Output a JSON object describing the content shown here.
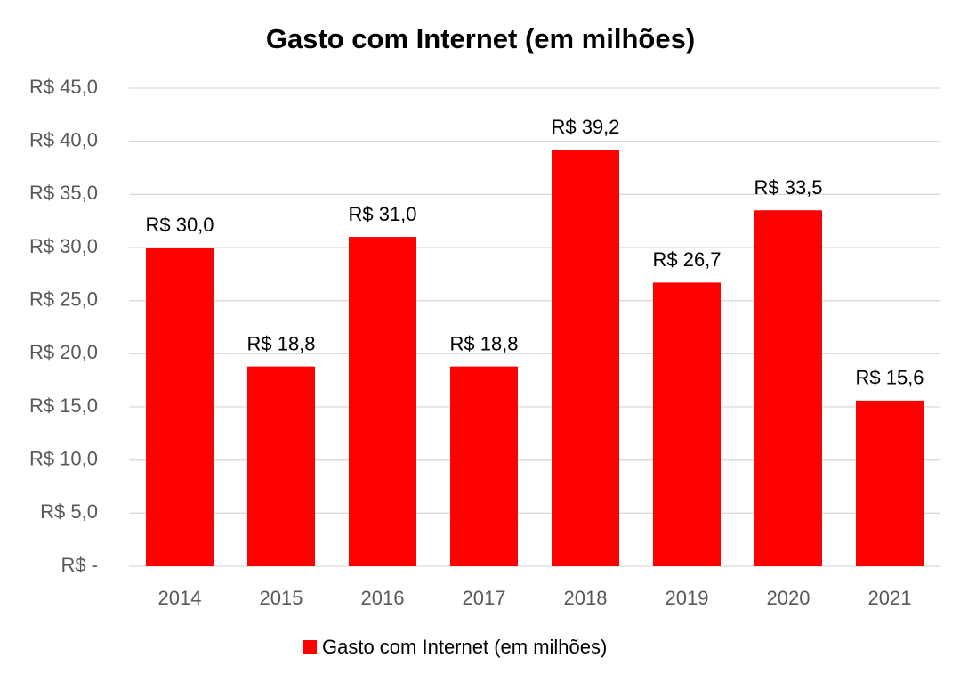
{
  "chart_data": {
    "type": "bar",
    "title": "Gasto com Internet (em milhões)",
    "categories": [
      "2014",
      "2015",
      "2016",
      "2017",
      "2018",
      "2019",
      "2020",
      "2021"
    ],
    "series": [
      {
        "name": "Gasto com Internet (em milhões)",
        "color": "#ff0000",
        "values": [
          30.0,
          18.8,
          31.0,
          18.8,
          39.2,
          26.7,
          33.5,
          15.6
        ],
        "value_labels": [
          "R$ 30,0",
          "R$ 18,8",
          "R$ 31,0",
          "R$ 18,8",
          "R$ 39,2",
          "R$ 26,7",
          "R$ 33,5",
          "R$ 15,6"
        ]
      }
    ],
    "ylim": [
      0,
      45
    ],
    "yticks": [
      {
        "value": 0,
        "label": "R$ -"
      },
      {
        "value": 5,
        "label": "R$ 5,0"
      },
      {
        "value": 10,
        "label": "R$ 10,0"
      },
      {
        "value": 15,
        "label": "R$ 15,0"
      },
      {
        "value": 20,
        "label": "R$ 20,0"
      },
      {
        "value": 25,
        "label": "R$ 25,0"
      },
      {
        "value": 30,
        "label": "R$ 30,0"
      },
      {
        "value": 35,
        "label": "R$ 35,0"
      },
      {
        "value": 40,
        "label": "R$ 40,0"
      },
      {
        "value": 45,
        "label": "R$ 45,0"
      }
    ],
    "grid": true,
    "legend": "bottom"
  }
}
